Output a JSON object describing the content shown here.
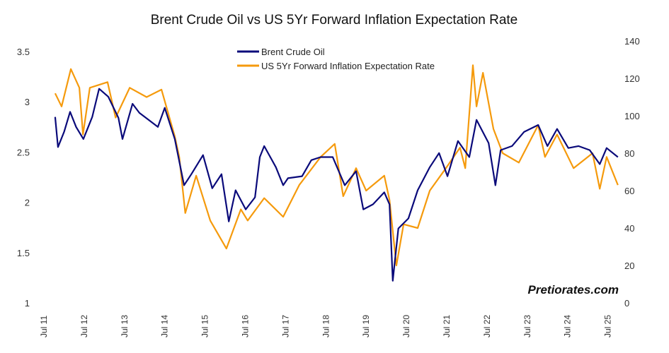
{
  "chart_data": {
    "type": "line",
    "title": "Brent Crude Oil vs US 5Yr Forward Inflation Expectation Rate",
    "watermark": "Pretiorates.com",
    "legend_position": "top-center",
    "grid": false,
    "x_ticks": [
      "Jul 11",
      "Jul 12",
      "Jul 13",
      "Jul 14",
      "Jul 15",
      "Jul 16",
      "Jul 17",
      "Jul 18",
      "Jul 19",
      "Jul 20",
      "Jul 21",
      "Jul 22",
      "Jul 23",
      "Jul 24",
      "Jul 25"
    ],
    "x_range": [
      2011.5,
      2026.0
    ],
    "y_left": {
      "ticks": [
        "1",
        "1.5",
        "2",
        "2.5",
        "3",
        "3.5"
      ],
      "range": [
        1,
        3.5
      ]
    },
    "y_right": {
      "ticks": [
        "0",
        "20",
        "40",
        "60",
        "80",
        "100",
        "120",
        "140"
      ],
      "range": [
        0,
        140
      ]
    },
    "series": [
      {
        "name": "Brent Crude Oil",
        "color": "#0a0a7a",
        "axis": "left",
        "points": [
          [
            2011.78,
            2.85
          ],
          [
            2011.85,
            2.55
          ],
          [
            2012.0,
            2.7
          ],
          [
            2012.15,
            2.9
          ],
          [
            2012.3,
            2.75
          ],
          [
            2012.48,
            2.63
          ],
          [
            2012.7,
            2.85
          ],
          [
            2012.87,
            3.13
          ],
          [
            2013.1,
            3.05
          ],
          [
            2013.35,
            2.84
          ],
          [
            2013.45,
            2.63
          ],
          [
            2013.7,
            2.98
          ],
          [
            2013.87,
            2.89
          ],
          [
            2014.1,
            2.82
          ],
          [
            2014.33,
            2.75
          ],
          [
            2014.5,
            2.94
          ],
          [
            2014.75,
            2.63
          ],
          [
            2014.98,
            2.17
          ],
          [
            2015.16,
            2.28
          ],
          [
            2015.45,
            2.47
          ],
          [
            2015.68,
            2.14
          ],
          [
            2015.91,
            2.28
          ],
          [
            2016.09,
            1.81
          ],
          [
            2016.26,
            2.12
          ],
          [
            2016.51,
            1.93
          ],
          [
            2016.74,
            2.05
          ],
          [
            2016.86,
            2.45
          ],
          [
            2016.97,
            2.56
          ],
          [
            2017.26,
            2.35
          ],
          [
            2017.44,
            2.17
          ],
          [
            2017.56,
            2.24
          ],
          [
            2017.91,
            2.26
          ],
          [
            2018.14,
            2.42
          ],
          [
            2018.37,
            2.45
          ],
          [
            2018.67,
            2.45
          ],
          [
            2018.97,
            2.17
          ],
          [
            2019.25,
            2.31
          ],
          [
            2019.43,
            1.93
          ],
          [
            2019.67,
            1.98
          ],
          [
            2019.95,
            2.1
          ],
          [
            2020.08,
            1.98
          ],
          [
            2020.16,
            1.22
          ],
          [
            2020.3,
            1.74
          ],
          [
            2020.55,
            1.84
          ],
          [
            2020.78,
            2.12
          ],
          [
            2021.08,
            2.35
          ],
          [
            2021.31,
            2.49
          ],
          [
            2021.52,
            2.26
          ],
          [
            2021.78,
            2.61
          ],
          [
            2022.06,
            2.45
          ],
          [
            2022.24,
            2.82
          ],
          [
            2022.54,
            2.59
          ],
          [
            2022.71,
            2.17
          ],
          [
            2022.84,
            2.52
          ],
          [
            2023.12,
            2.56
          ],
          [
            2023.42,
            2.7
          ],
          [
            2023.77,
            2.77
          ],
          [
            2024.0,
            2.56
          ],
          [
            2024.24,
            2.73
          ],
          [
            2024.52,
            2.54
          ],
          [
            2024.77,
            2.56
          ],
          [
            2025.05,
            2.52
          ],
          [
            2025.3,
            2.38
          ],
          [
            2025.47,
            2.54
          ],
          [
            2025.75,
            2.45
          ]
        ]
      },
      {
        "name": "US 5Yr Forward Inflation Expectation Rate",
        "color": "#f59a0c",
        "axis": "right",
        "points": [
          [
            2011.78,
            112
          ],
          [
            2011.94,
            105
          ],
          [
            2012.17,
            125
          ],
          [
            2012.38,
            115
          ],
          [
            2012.47,
            90
          ],
          [
            2012.64,
            115
          ],
          [
            2013.08,
            118
          ],
          [
            2013.28,
            99
          ],
          [
            2013.63,
            115
          ],
          [
            2014.05,
            110
          ],
          [
            2014.42,
            114
          ],
          [
            2014.75,
            89
          ],
          [
            2014.86,
            78
          ],
          [
            2015.01,
            48
          ],
          [
            2015.28,
            68
          ],
          [
            2015.63,
            44
          ],
          [
            2016.03,
            29
          ],
          [
            2016.39,
            50
          ],
          [
            2016.56,
            44
          ],
          [
            2016.97,
            56
          ],
          [
            2017.44,
            46
          ],
          [
            2017.84,
            63
          ],
          [
            2018.37,
            78
          ],
          [
            2018.72,
            85
          ],
          [
            2018.93,
            57
          ],
          [
            2019.25,
            72
          ],
          [
            2019.5,
            60
          ],
          [
            2019.95,
            68
          ],
          [
            2020.08,
            55
          ],
          [
            2020.25,
            20
          ],
          [
            2020.43,
            42
          ],
          [
            2020.78,
            40
          ],
          [
            2021.08,
            60
          ],
          [
            2021.48,
            72
          ],
          [
            2021.83,
            83
          ],
          [
            2021.96,
            72
          ],
          [
            2022.15,
            127
          ],
          [
            2022.24,
            105
          ],
          [
            2022.4,
            123
          ],
          [
            2022.66,
            93
          ],
          [
            2022.89,
            80
          ],
          [
            2023.29,
            75
          ],
          [
            2023.77,
            95
          ],
          [
            2023.94,
            78
          ],
          [
            2024.24,
            90
          ],
          [
            2024.65,
            72
          ],
          [
            2025.12,
            80
          ],
          [
            2025.3,
            61
          ],
          [
            2025.47,
            78
          ],
          [
            2025.75,
            63
          ]
        ]
      }
    ]
  }
}
